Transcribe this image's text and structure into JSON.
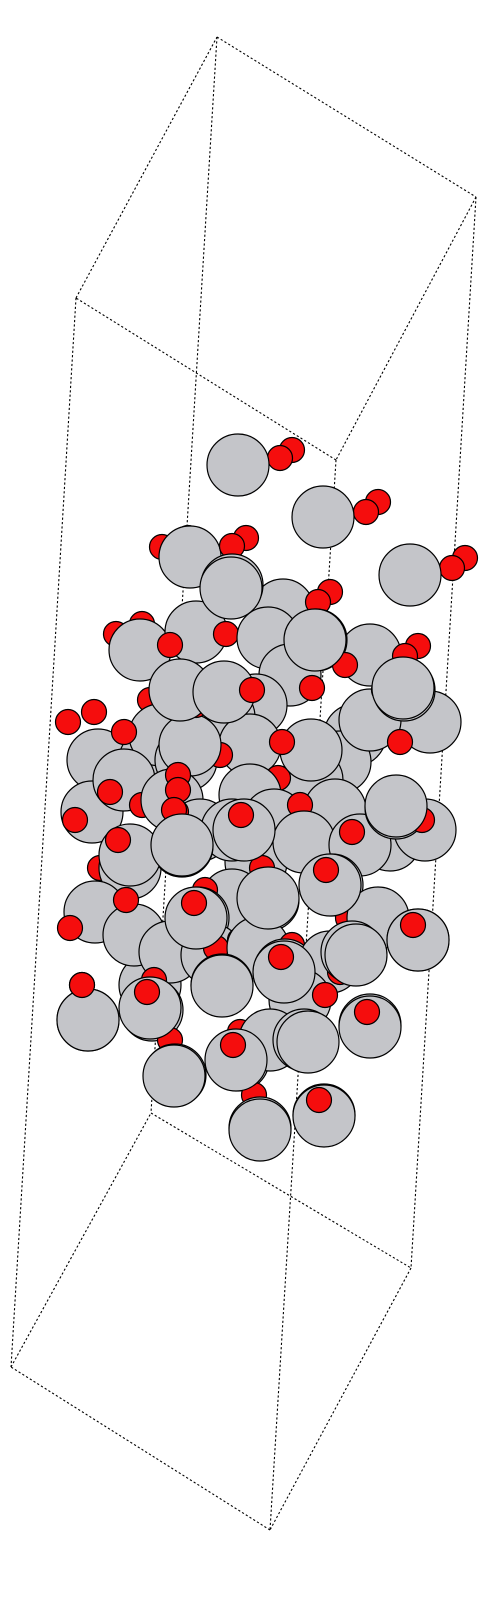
{
  "figure": {
    "kind": "atomic-structure-render",
    "projection": "perspective",
    "unit_cell_outline": "dashed",
    "background": "#ffffff",
    "species": [
      {
        "name": "metal",
        "color": "#c4c5c9"
      },
      {
        "name": "oxygen",
        "color": "#f50d0d"
      }
    ]
  }
}
